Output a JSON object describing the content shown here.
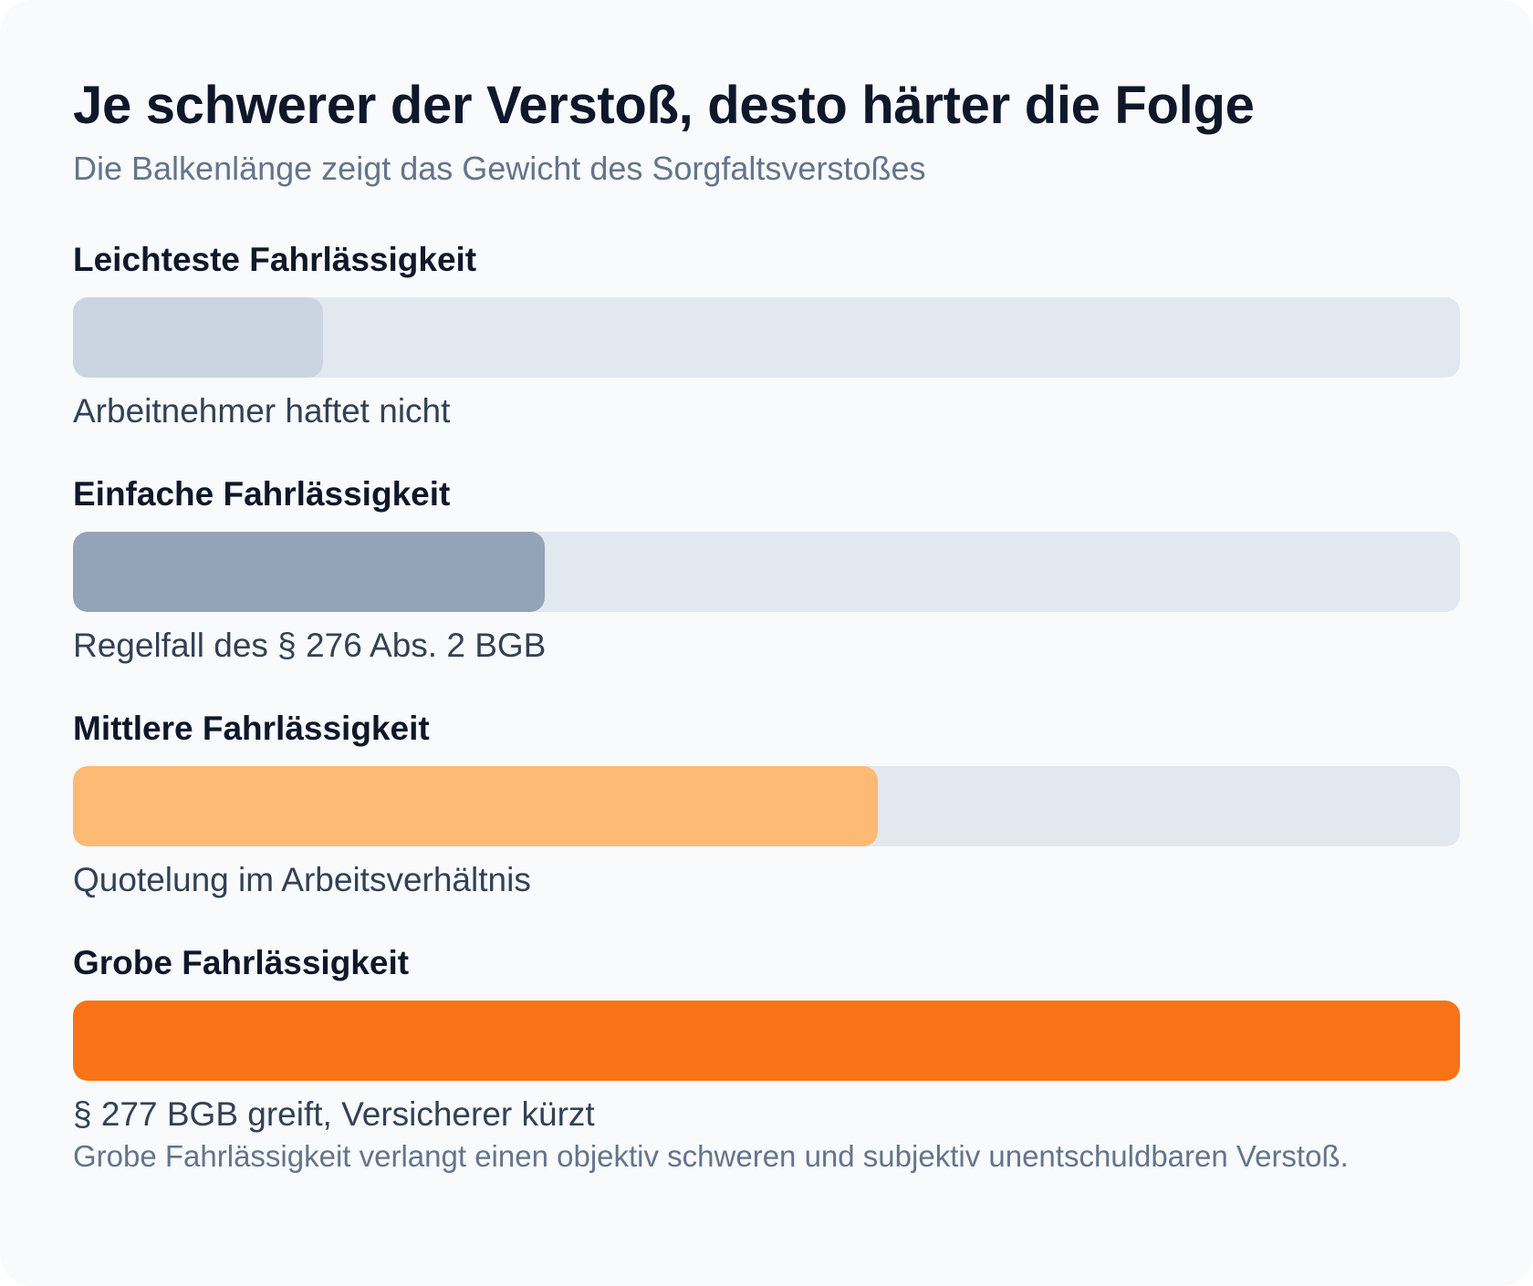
{
  "chart_data": {
    "type": "bar",
    "orientation": "horizontal",
    "title": "Je schwerer der Verstoß, desto härter die Folge",
    "subtitle": "Die Balkenlänge zeigt das Gewicht des Sorgfaltsverstoßes",
    "xlim": [
      0,
      100
    ],
    "grid": false,
    "categories": [
      "Leichteste Fahrlässigkeit",
      "Einfache Fahrlässigkeit",
      "Mittlere Fahrlässigkeit",
      "Grobe Fahrlässigkeit"
    ],
    "values": [
      18,
      34,
      58,
      100
    ],
    "annotations": [
      "Arbeitnehmer haftet nicht",
      "Regelfall des § 276 Abs. 2 BGB",
      "Quotelung im Arbeitsverhältnis",
      "§ 277 BGB greift, Versicherer kürzt"
    ],
    "colors": [
      "#cbd5e1",
      "#94a3b8",
      "#fdba74",
      "#f97316"
    ],
    "track_color": "#e2e8f0"
  },
  "footnote": "Grobe Fahrlässigkeit verlangt einen objektiv schweren und subjektiv unentschuldbaren Verstoß."
}
